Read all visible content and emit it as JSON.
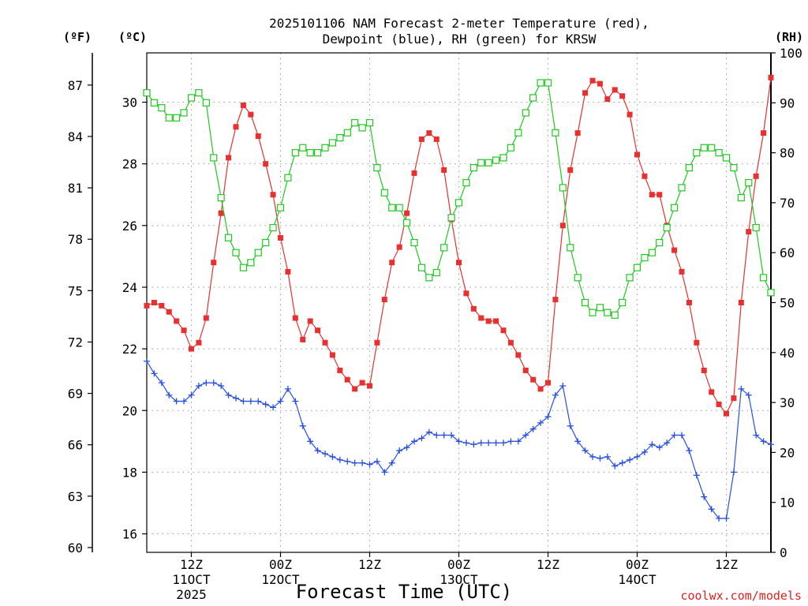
{
  "chart_data": {
    "type": "line",
    "title_lines": [
      "2025101106 NAM Forecast 2-meter Temperature (red),",
      "Dewpoint (blue), RH (green) for KRSW"
    ],
    "xlabel": "Forecast Time (UTC)",
    "credit": "coolwx.com/models",
    "unit_labels": {
      "fahrenheit": "(ºF)",
      "celsius": "(ºC)",
      "rh": "(RH)"
    },
    "x_range_hours": [
      0,
      84
    ],
    "x_ticks": [
      {
        "hour": 6,
        "lines": [
          "12Z",
          "11OCT",
          "2025"
        ]
      },
      {
        "hour": 18,
        "lines": [
          "00Z",
          "12OCT"
        ]
      },
      {
        "hour": 30,
        "lines": [
          "12Z"
        ]
      },
      {
        "hour": 42,
        "lines": [
          "00Z",
          "13OCT"
        ]
      },
      {
        "hour": 54,
        "lines": [
          "12Z"
        ]
      },
      {
        "hour": 66,
        "lines": [
          "00Z",
          "14OCT"
        ]
      },
      {
        "hour": 78,
        "lines": [
          "12Z"
        ]
      }
    ],
    "celsius_axis": {
      "range": [
        15.4,
        31.6
      ],
      "ticks": [
        "16",
        "18",
        "20",
        "22",
        "24",
        "26",
        "28",
        "30"
      ]
    },
    "fahrenheit_ticks": [
      "60",
      "63",
      "66",
      "69",
      "72",
      "75",
      "78",
      "81",
      "84",
      "87"
    ],
    "rh_axis": {
      "range": [
        0,
        100
      ],
      "ticks": [
        "0",
        "10",
        "20",
        "30",
        "40",
        "50",
        "60",
        "70",
        "80",
        "90",
        "100"
      ]
    },
    "series": [
      {
        "name": "Temperature",
        "unit": "C",
        "color": "#e83030",
        "marker": "filled-square",
        "x": [
          0,
          1,
          2,
          3,
          4,
          5,
          6,
          7,
          8,
          9,
          10,
          11,
          12,
          13,
          14,
          15,
          16,
          17,
          18,
          19,
          20,
          21,
          22,
          23,
          24,
          25,
          26,
          27,
          28,
          29,
          30,
          31,
          32,
          33,
          34,
          35,
          36,
          37,
          38,
          39,
          40,
          41,
          42,
          43,
          44,
          45,
          46,
          47,
          48,
          49,
          50,
          51,
          52,
          53,
          54,
          55,
          56,
          57,
          58,
          59,
          60,
          61,
          62,
          63,
          64,
          65,
          66,
          67,
          68,
          69,
          70,
          71,
          72,
          73,
          74,
          75,
          76,
          77,
          78,
          79,
          80,
          81,
          82,
          83,
          84
        ],
        "values": [
          23.4,
          23.5,
          23.4,
          23.2,
          22.9,
          22.6,
          22.0,
          22.2,
          23.0,
          24.8,
          26.4,
          28.2,
          29.2,
          29.9,
          29.6,
          28.9,
          28.0,
          27.0,
          25.6,
          24.5,
          23.0,
          22.3,
          22.9,
          22.6,
          22.2,
          21.8,
          21.3,
          21.0,
          20.7,
          20.9,
          20.8,
          22.2,
          23.6,
          24.8,
          25.3,
          26.4,
          27.7,
          28.8,
          29.0,
          28.8,
          27.8,
          26.2,
          24.8,
          23.8,
          23.3,
          23.0,
          22.9,
          22.9,
          22.6,
          22.2,
          21.8,
          21.3,
          21.0,
          20.7,
          20.9,
          23.6,
          26.0,
          27.8,
          29.0,
          30.3,
          30.7,
          30.6,
          30.1,
          30.4,
          30.2,
          29.6,
          28.3,
          27.6,
          27.0,
          27.0,
          26.0,
          25.2,
          24.5,
          23.5,
          22.2,
          21.3,
          20.6,
          20.2,
          19.9,
          20.4,
          23.5,
          25.8,
          27.6,
          29.0,
          30.8
        ]
      },
      {
        "name": "Dewpoint",
        "unit": "C",
        "color": "#2850e0",
        "marker": "plus",
        "x": [
          0,
          1,
          2,
          3,
          4,
          5,
          6,
          7,
          8,
          9,
          10,
          11,
          12,
          13,
          14,
          15,
          16,
          17,
          18,
          19,
          20,
          21,
          22,
          23,
          24,
          25,
          26,
          27,
          28,
          29,
          30,
          31,
          32,
          33,
          34,
          35,
          36,
          37,
          38,
          39,
          40,
          41,
          42,
          43,
          44,
          45,
          46,
          47,
          48,
          49,
          50,
          51,
          52,
          53,
          54,
          55,
          56,
          57,
          58,
          59,
          60,
          61,
          62,
          63,
          64,
          65,
          66,
          67,
          68,
          69,
          70,
          71,
          72,
          73,
          74,
          75,
          76,
          77,
          78,
          79,
          80,
          81,
          82,
          83,
          84
        ],
        "values": [
          21.6,
          21.2,
          20.9,
          20.5,
          20.3,
          20.3,
          20.5,
          20.8,
          20.9,
          20.9,
          20.8,
          20.5,
          20.4,
          20.3,
          20.3,
          20.3,
          20.2,
          20.1,
          20.3,
          20.7,
          20.3,
          19.5,
          19.0,
          18.7,
          18.6,
          18.5,
          18.4,
          18.35,
          18.3,
          18.3,
          18.25,
          18.35,
          18.0,
          18.3,
          18.7,
          18.8,
          19.0,
          19.1,
          19.3,
          19.2,
          19.2,
          19.2,
          19.0,
          18.95,
          18.9,
          18.95,
          18.95,
          18.95,
          18.95,
          19.0,
          19.0,
          19.2,
          19.4,
          19.6,
          19.8,
          20.5,
          20.8,
          19.5,
          19.0,
          18.7,
          18.5,
          18.45,
          18.5,
          18.2,
          18.3,
          18.4,
          18.5,
          18.65,
          18.9,
          18.8,
          18.95,
          19.2,
          19.2,
          18.7,
          17.9,
          17.2,
          16.8,
          16.5,
          16.5,
          18.0,
          20.7,
          20.5,
          19.2,
          19.0,
          18.9
        ]
      },
      {
        "name": "RH",
        "unit": "%",
        "color": "#20c820",
        "marker": "open-square",
        "x": [
          0,
          1,
          2,
          3,
          4,
          5,
          6,
          7,
          8,
          9,
          10,
          11,
          12,
          13,
          14,
          15,
          16,
          17,
          18,
          19,
          20,
          21,
          22,
          23,
          24,
          25,
          26,
          27,
          28,
          29,
          30,
          31,
          32,
          33,
          34,
          35,
          36,
          37,
          38,
          39,
          40,
          41,
          42,
          43,
          44,
          45,
          46,
          47,
          48,
          49,
          50,
          51,
          52,
          53,
          54,
          55,
          56,
          57,
          58,
          59,
          60,
          61,
          62,
          63,
          64,
          65,
          66,
          67,
          68,
          69,
          70,
          71,
          72,
          73,
          74,
          75,
          76,
          77,
          78,
          79,
          80,
          81,
          82,
          83,
          84
        ],
        "values": [
          92,
          90,
          89,
          87,
          87,
          88,
          91,
          92,
          90,
          79,
          71,
          63,
          60,
          57,
          58,
          60,
          62,
          65,
          69,
          75,
          80,
          81,
          80,
          80,
          81,
          82,
          83,
          84,
          86,
          85,
          86,
          77,
          72,
          69,
          69,
          66,
          62,
          57,
          55,
          56,
          61,
          67,
          70,
          74,
          77,
          78,
          78,
          78.5,
          79,
          81,
          84,
          88,
          91,
          94,
          94,
          84,
          73,
          61,
          55,
          50,
          48,
          49,
          48,
          47.5,
          50,
          55,
          57,
          59,
          60,
          62,
          65,
          69,
          73,
          77,
          80,
          81,
          81,
          80,
          79,
          77,
          71,
          74,
          65,
          55,
          52
        ]
      }
    ]
  }
}
